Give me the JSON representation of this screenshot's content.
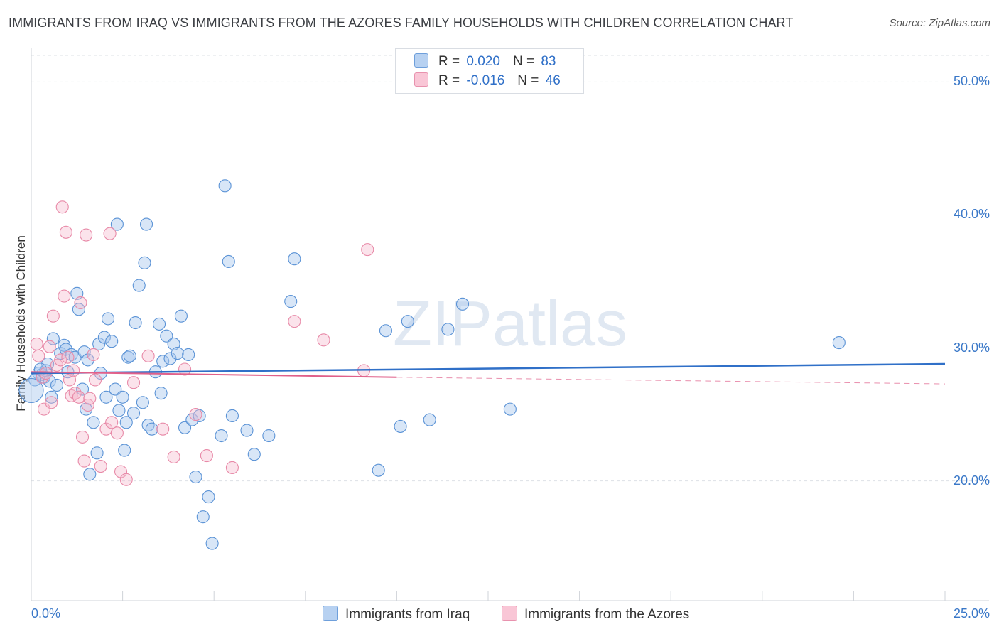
{
  "title": "IMMIGRANTS FROM IRAQ VS IMMIGRANTS FROM THE AZORES FAMILY HOUSEHOLDS WITH CHILDREN CORRELATION CHART",
  "source": "Source: ZipAtlas.com",
  "watermark": "ZIPatlas",
  "legend": {
    "rows": [
      {
        "r_label": "R =",
        "r_value": "0.020",
        "n_label": "N =",
        "n_value": "83"
      },
      {
        "r_label": "R =",
        "r_value": "-0.016",
        "n_label": "N =",
        "n_value": "46"
      }
    ]
  },
  "chart_data": {
    "type": "scatter",
    "title": "IMMIGRANTS FROM IRAQ VS IMMIGRANTS FROM THE AZORES FAMILY HOUSEHOLDS WITH CHILDREN CORRELATION CHART",
    "xlabel": "",
    "ylabel": "Family Households with Children",
    "xlim": [
      0,
      25
    ],
    "ylim": [
      11,
      52
    ],
    "x_tick_labels": [
      "0.0%",
      "25.0%"
    ],
    "y_ticks": [
      20,
      30,
      40,
      50
    ],
    "y_tick_labels": [
      "20.0%",
      "30.0%",
      "40.0%",
      "50.0%"
    ],
    "grid": true,
    "legend_position": "top-center",
    "colors": {
      "iraq_fill": "#a9c8ee",
      "iraq_stroke": "#5b93d6",
      "iraq_line": "#3070c8",
      "azores_fill": "#f6b8cc",
      "azores_stroke": "#e88aa8",
      "azores_line": "#e0608a"
    },
    "series": [
      {
        "name": "Immigrants from Iraq",
        "R": 0.02,
        "N": 83,
        "trend": {
          "x": [
            0,
            25
          ],
          "y": [
            28.1,
            28.8
          ]
        },
        "points": [
          [
            0.2,
            28.1
          ],
          [
            0.3,
            28.0
          ],
          [
            0.35,
            27.8
          ],
          [
            0.4,
            28.3
          ],
          [
            0.45,
            28.8
          ],
          [
            0.5,
            27.5
          ],
          [
            0.55,
            26.3
          ],
          [
            0.6,
            30.7
          ],
          [
            0.7,
            27.2
          ],
          [
            0.8,
            29.6
          ],
          [
            0.9,
            30.2
          ],
          [
            0.95,
            29.9
          ],
          [
            1.0,
            28.2
          ],
          [
            1.1,
            29.5
          ],
          [
            1.2,
            29.3
          ],
          [
            1.25,
            34.1
          ],
          [
            1.3,
            32.9
          ],
          [
            1.4,
            26.9
          ],
          [
            1.45,
            29.7
          ],
          [
            1.5,
            25.4
          ],
          [
            1.55,
            29.1
          ],
          [
            1.6,
            20.5
          ],
          [
            1.7,
            24.4
          ],
          [
            1.8,
            22.1
          ],
          [
            1.85,
            30.3
          ],
          [
            1.9,
            28.1
          ],
          [
            2.0,
            30.8
          ],
          [
            2.05,
            26.3
          ],
          [
            2.1,
            32.2
          ],
          [
            2.2,
            30.5
          ],
          [
            2.3,
            26.9
          ],
          [
            2.35,
            39.3
          ],
          [
            2.4,
            25.3
          ],
          [
            2.5,
            26.3
          ],
          [
            2.55,
            22.3
          ],
          [
            2.6,
            24.4
          ],
          [
            2.65,
            29.3
          ],
          [
            2.7,
            29.4
          ],
          [
            2.8,
            25.1
          ],
          [
            2.85,
            31.9
          ],
          [
            2.95,
            34.7
          ],
          [
            3.05,
            25.9
          ],
          [
            3.1,
            36.4
          ],
          [
            3.15,
            39.3
          ],
          [
            3.2,
            24.2
          ],
          [
            3.3,
            23.9
          ],
          [
            3.4,
            28.2
          ],
          [
            3.5,
            31.8
          ],
          [
            3.55,
            26.6
          ],
          [
            3.6,
            29.0
          ],
          [
            3.7,
            30.9
          ],
          [
            3.8,
            29.2
          ],
          [
            3.9,
            30.3
          ],
          [
            4.0,
            29.6
          ],
          [
            4.1,
            32.4
          ],
          [
            4.2,
            24.0
          ],
          [
            4.3,
            29.5
          ],
          [
            4.4,
            24.6
          ],
          [
            4.5,
            20.3
          ],
          [
            4.6,
            24.9
          ],
          [
            4.7,
            17.3
          ],
          [
            4.85,
            18.8
          ],
          [
            4.95,
            15.3
          ],
          [
            5.2,
            23.4
          ],
          [
            5.3,
            42.2
          ],
          [
            5.4,
            36.5
          ],
          [
            5.5,
            24.9
          ],
          [
            5.9,
            23.8
          ],
          [
            6.1,
            22.0
          ],
          [
            6.5,
            23.4
          ],
          [
            7.1,
            33.5
          ],
          [
            7.2,
            36.7
          ],
          [
            9.5,
            20.8
          ],
          [
            9.7,
            31.3
          ],
          [
            10.1,
            24.1
          ],
          [
            10.3,
            32.0
          ],
          [
            10.9,
            24.6
          ],
          [
            11.4,
            31.4
          ],
          [
            11.8,
            33.3
          ],
          [
            13.1,
            25.4
          ],
          [
            22.1,
            30.4
          ],
          [
            0.1,
            27.6
          ],
          [
            0.25,
            28.4
          ]
        ]
      },
      {
        "name": "Immigrants from the Azores",
        "R": -0.016,
        "N": 46,
        "trend": {
          "x": [
            0,
            10
          ],
          "y": [
            28.2,
            27.8
          ]
        },
        "trend_extension": {
          "x": [
            10,
            25
          ],
          "y": [
            27.8,
            27.3
          ]
        },
        "points": [
          [
            0.15,
            30.3
          ],
          [
            0.2,
            29.4
          ],
          [
            0.3,
            27.8
          ],
          [
            0.35,
            25.4
          ],
          [
            0.4,
            28.1
          ],
          [
            0.5,
            30.1
          ],
          [
            0.55,
            25.9
          ],
          [
            0.6,
            32.4
          ],
          [
            0.7,
            28.7
          ],
          [
            0.8,
            29.1
          ],
          [
            0.85,
            40.6
          ],
          [
            0.9,
            33.9
          ],
          [
            0.95,
            38.7
          ],
          [
            1.0,
            29.3
          ],
          [
            1.05,
            27.6
          ],
          [
            1.1,
            26.4
          ],
          [
            1.15,
            28.3
          ],
          [
            1.2,
            26.6
          ],
          [
            1.3,
            26.3
          ],
          [
            1.35,
            33.4
          ],
          [
            1.4,
            23.3
          ],
          [
            1.45,
            21.5
          ],
          [
            1.5,
            38.5
          ],
          [
            1.55,
            25.7
          ],
          [
            1.6,
            26.2
          ],
          [
            1.7,
            29.5
          ],
          [
            1.75,
            27.6
          ],
          [
            1.9,
            21.1
          ],
          [
            2.05,
            23.9
          ],
          [
            2.15,
            38.6
          ],
          [
            2.2,
            24.4
          ],
          [
            2.35,
            23.6
          ],
          [
            2.45,
            20.7
          ],
          [
            2.6,
            20.1
          ],
          [
            2.8,
            27.4
          ],
          [
            3.2,
            29.4
          ],
          [
            3.6,
            23.9
          ],
          [
            3.9,
            21.8
          ],
          [
            4.2,
            28.4
          ],
          [
            4.5,
            25.0
          ],
          [
            4.8,
            21.9
          ],
          [
            5.5,
            21.0
          ],
          [
            7.2,
            32.0
          ],
          [
            8.0,
            30.6
          ],
          [
            9.1,
            28.3
          ],
          [
            9.2,
            37.4
          ]
        ]
      }
    ],
    "series_legend": [
      "Immigrants from Iraq",
      "Immigrants from the Azores"
    ]
  }
}
